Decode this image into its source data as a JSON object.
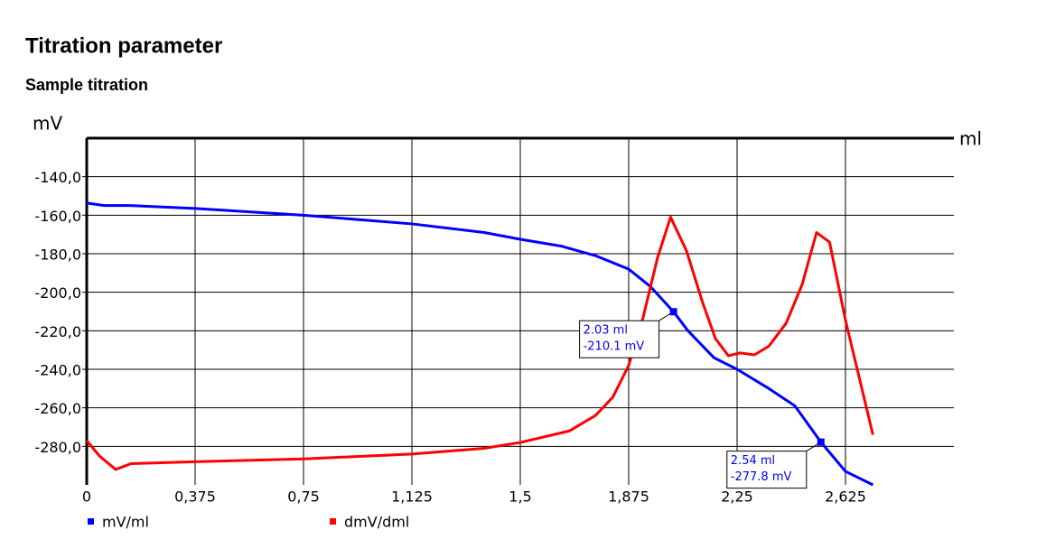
{
  "header": {
    "title": "Titration parameter",
    "subtitle": "Sample titration"
  },
  "chart_data": {
    "type": "line",
    "y_label": "mV",
    "x_label": "ml",
    "xlim": [
      0,
      3
    ],
    "ylim": [
      -300,
      -120
    ],
    "xticks": [
      0,
      {
        "value": 0.375,
        "label": "0,375"
      },
      {
        "value": 0.75,
        "label": "0,75"
      },
      {
        "value": 1.125,
        "label": "1,125"
      },
      {
        "value": 1.5,
        "label": "1,5"
      },
      {
        "value": 1.875,
        "label": "1,875"
      },
      {
        "value": 2.25,
        "label": "2,25"
      },
      {
        "value": 2.625,
        "label": "2,625"
      }
    ],
    "yticks": [
      {
        "value": -140,
        "label": "-140,0"
      },
      {
        "value": -160,
        "label": "-160,0"
      },
      {
        "value": -180,
        "label": "-180,0"
      },
      {
        "value": -200,
        "label": "-200,0"
      },
      {
        "value": -220,
        "label": "-220,0"
      },
      {
        "value": -240,
        "label": "-240,0"
      },
      {
        "value": -260,
        "label": "-260,0"
      },
      {
        "value": -280,
        "label": "-280,0"
      }
    ],
    "grid": true,
    "series": [
      {
        "name": "mV/ml",
        "color": "#0000ff",
        "x": [
          0,
          0.06,
          0.15,
          0.375,
          0.75,
          1.125,
          1.375,
          1.5,
          1.64,
          1.76,
          1.875,
          1.95,
          2.03,
          2.08,
          2.17,
          2.25,
          2.36,
          2.45,
          2.54,
          2.625,
          2.72
        ],
        "values": [
          -153.7,
          -155,
          -155,
          -156.5,
          -160,
          -164.5,
          -169,
          -172.5,
          -176,
          -181,
          -188,
          -197,
          -210.1,
          -220,
          -234,
          -240,
          -250,
          -259,
          -277.8,
          -293,
          -300
        ]
      },
      {
        "name": "dmV/dml",
        "color": "#ff0000",
        "x": [
          0,
          0.044,
          0.1,
          0.153,
          0.375,
          0.75,
          1.125,
          1.375,
          1.5,
          1.67,
          1.76,
          1.82,
          1.875,
          1.925,
          1.975,
          2.02,
          2.075,
          2.13,
          2.175,
          2.22,
          2.26,
          2.31,
          2.36,
          2.42,
          2.475,
          2.525,
          2.57,
          2.625,
          2.72
        ],
        "values": [
          -277,
          -285,
          -292,
          -289,
          -288,
          -286.5,
          -284,
          -281,
          -278,
          -272,
          -264,
          -254.5,
          -238,
          -213,
          -182,
          -161,
          -178.5,
          -205,
          -224,
          -233,
          -231.5,
          -232.5,
          -228,
          -216,
          -196,
          -169,
          -174,
          -214.5,
          -274
        ]
      }
    ],
    "annotations": [
      {
        "x": 2.03,
        "y": -210.1,
        "label": [
          "2.03 ml",
          "-210.1 mV"
        ]
      },
      {
        "x": 2.54,
        "y": -277.8,
        "label": [
          "2.54 ml",
          "-277.8 mV"
        ]
      }
    ]
  }
}
